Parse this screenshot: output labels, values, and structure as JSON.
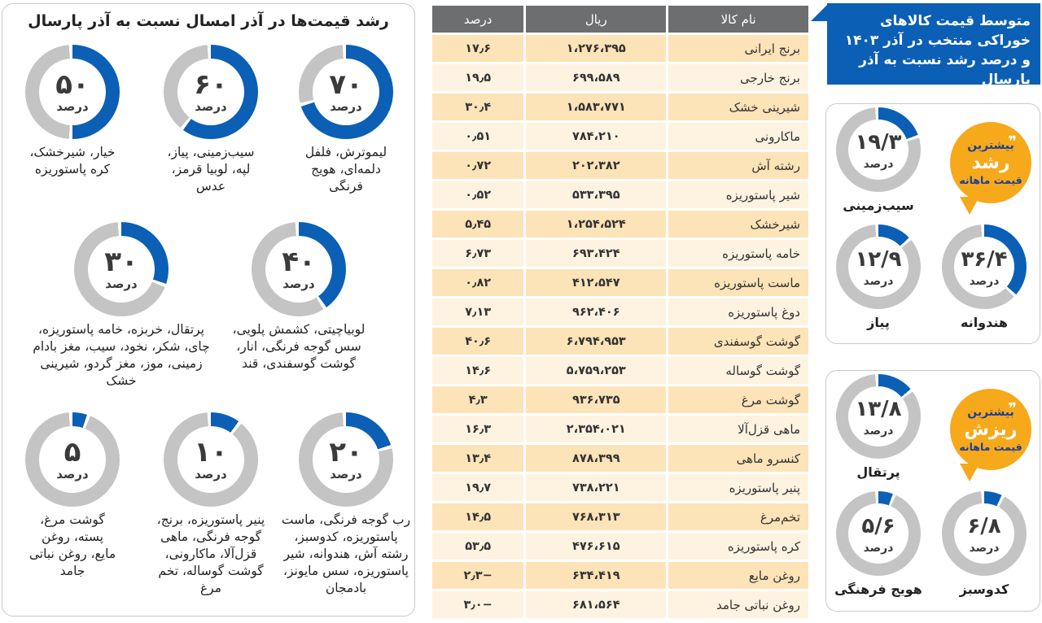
{
  "colors": {
    "accent_blue": "#0b5fb5",
    "ring_gray": "#c4c4c4",
    "header_gray": "#6d6e70",
    "row_odd": "#fde3b8",
    "row_even": "#fef3e1",
    "bubble_orange": "#f6a91b"
  },
  "headline": {
    "text": "متوسط قیمت کالاهای خوراکی منتخب در آذر ۱۴۰۳ و درصد رشد نسبت به آذر پارسال"
  },
  "table": {
    "headers": [
      "نام کالا",
      "ریال",
      "درصد"
    ],
    "rows": [
      {
        "name": "برنج ایرانی",
        "rial": "۱،۲۷۶،۳۹۵",
        "pct": "۱۷٫۶"
      },
      {
        "name": "برنج خارجی",
        "rial": "۶۹۹،۵۸۹",
        "pct": "۱۹٫۵"
      },
      {
        "name": "شیرینی خشک",
        "rial": "۱،۵۸۳،۷۷۱",
        "pct": "۳۰٫۴"
      },
      {
        "name": "ماکارونی",
        "rial": "۷۸۴،۲۱۰",
        "pct": "۰٫۵۱"
      },
      {
        "name": "رشته آش",
        "rial": "۲۰۲،۳۸۲",
        "pct": "۰٫۷۲"
      },
      {
        "name": "شیر پاستوریزه",
        "rial": "۵۳۳،۳۹۵",
        "pct": "۰٫۵۲"
      },
      {
        "name": "شیرخشک",
        "rial": "۱،۲۵۴،۵۲۴",
        "pct": "۵٫۴۵"
      },
      {
        "name": "خامه پاستوریزه",
        "rial": "۶۹۳،۴۲۴",
        "pct": "۶٫۷۳"
      },
      {
        "name": "ماست پاستوریزه",
        "rial": "۴۱۲،۵۴۷",
        "pct": "۰٫۸۲"
      },
      {
        "name": "دوغ پاستوریزه",
        "rial": "۹۶۲،۴۰۶",
        "pct": "۷٫۱۳"
      },
      {
        "name": "گوشت گوسفندی",
        "rial": "۶،۷۹۴،۹۵۳",
        "pct": "۴۰٫۶"
      },
      {
        "name": "گوشت گوساله",
        "rial": "۵،۷۵۹،۲۵۳",
        "pct": "۱۴٫۶"
      },
      {
        "name": "گوشت مرغ",
        "rial": "۹۳۶،۷۳۵",
        "pct": "۴٫۳"
      },
      {
        "name": "ماهی قزل‌آلا",
        "rial": "۲،۳۵۴،۰۲۱",
        "pct": "۱۶٫۳"
      },
      {
        "name": "کنسرو ماهی",
        "rial": "۸۷۸،۳۹۹",
        "pct": "۱۳٫۴"
      },
      {
        "name": "پنیر پاستوریزه",
        "rial": "۷۳۸،۲۲۱",
        "pct": "۱۹٫۷"
      },
      {
        "name": "تخم‌مرغ",
        "rial": "۷۶۸،۳۱۳",
        "pct": "۱۴٫۵"
      },
      {
        "name": "کره پاستوریزه",
        "rial": "۴۷۶،۶۱۵",
        "pct": "۵۳٫۵"
      },
      {
        "name": "روغن مایع",
        "rial": "۶۳۴،۴۱۹",
        "pct": "−۲٫۳"
      },
      {
        "name": "روغن نباتی جامد",
        "rial": "۶۸۱،۵۶۴",
        "pct": "−۳٫۰"
      }
    ]
  },
  "left_panel": {
    "title": "رشد قیمت‌ها در آذر امسال نسبت به آذر پارسال",
    "unit": "درصد",
    "groups": [
      {
        "value": 70,
        "num": "۷۰",
        "items": "لیموترش، فلفل دلمه‌ای، هویج فرنگی"
      },
      {
        "value": 60,
        "num": "۶۰",
        "items": "سیب‌زمینی، پیاز، لپه، لوبیا قرمز، عدس"
      },
      {
        "value": 50,
        "num": "۵۰",
        "items": "خیار، شیرخشک، کره پاستوریزه"
      },
      {
        "value": 40,
        "num": "۴۰",
        "items": "لوبیاچیتی، کشمش پلویی، سس گوجه فرنگی، انار، گوشت گوسفندی، قند"
      },
      {
        "value": 30,
        "num": "۳۰",
        "items": "پرتقال، خربزه، خامه پاستوریزه، چای، شکر، نخود، سیب، مغز بادام زمینی، موز، مغز گردو، شیرینی خشک"
      },
      {
        "value": 20,
        "num": "۲۰",
        "items": "رب گوجه فرنگی، ماست پاستوریزه، کدوسبز، رشته آش، هندوانه، شیر پاستوریزه، سس مایونز، بادمجان"
      },
      {
        "value": 10,
        "num": "۱۰",
        "items": "پنیر پاستوریزه، برنج، گوجه فرنگی، ماهی قزل‌آلا، ماکارونی، گوشت گوساله، تخم مرغ"
      },
      {
        "value": 5,
        "num": "۵",
        "items": "گوشت مرغ، پسته، روغن مایع، روغن نباتی جامد"
      }
    ]
  },
  "rise_panel": {
    "bubble": {
      "line1": "بیشترین",
      "line2": "رشد",
      "line3": "قیمت ماهانه"
    },
    "items": [
      {
        "value": 19.3,
        "num": "۱۹/۳",
        "name": "سیب‌زمینی"
      },
      {
        "value": 36.4,
        "num": "۳۶/۴",
        "name": "هندوانه"
      },
      {
        "value": 12.9,
        "num": "۱۲/۹",
        "name": "پیاز"
      }
    ]
  },
  "fall_panel": {
    "bubble": {
      "line1": "بیشترین",
      "line2": "ریزش",
      "line3": "قیمت ماهانه"
    },
    "items": [
      {
        "value": 13.8,
        "num": "۱۳/۸",
        "name": "پرتقال"
      },
      {
        "value": 6.8,
        "num": "۶/۸",
        "name": "کدوسبز"
      },
      {
        "value": 5.6,
        "num": "۵/۶",
        "name": "هویج فرهنگی"
      }
    ]
  },
  "chart_data": [
    {
      "type": "table",
      "title": "متوسط قیمت کالاهای خوراکی منتخب در آذر ۱۴۰۳ و درصد رشد نسبت به آذر پارسال",
      "columns": [
        "نام کالا",
        "ریال",
        "درصد"
      ],
      "rows": [
        [
          "برنج ایرانی",
          1276395,
          17.6
        ],
        [
          "برنج خارجی",
          699589,
          19.5
        ],
        [
          "شیرینی خشک",
          1583771,
          30.4
        ],
        [
          "ماکارونی",
          784210,
          0.51
        ],
        [
          "رشته آش",
          202382,
          0.72
        ],
        [
          "شیر پاستوریزه",
          533395,
          0.52
        ],
        [
          "شیرخشک",
          1254524,
          5.45
        ],
        [
          "خامه پاستوریزه",
          693424,
          6.73
        ],
        [
          "ماست پاستوریزه",
          412547,
          0.82
        ],
        [
          "دوغ پاستوریزه",
          962406,
          7.13
        ],
        [
          "گوشت گوسفندی",
          6794953,
          40.6
        ],
        [
          "گوشت گوساله",
          5759253,
          14.6
        ],
        [
          "گوشت مرغ",
          936735,
          4.3
        ],
        [
          "ماهی قزل‌آلا",
          2354021,
          16.3
        ],
        [
          "کنسرو ماهی",
          878399,
          13.4
        ],
        [
          "پنیر پاستوریزه",
          738221,
          19.7
        ],
        [
          "تخم‌مرغ",
          768313,
          14.5
        ],
        [
          "کره پاستوریزه",
          476615,
          53.5
        ],
        [
          "روغن مایع",
          634419,
          -2.3
        ],
        [
          "روغن نباتی جامد",
          681564,
          -3.0
        ]
      ]
    },
    {
      "type": "pie",
      "title": "رشد قیمت‌ها در آذر امسال نسبت به آذر پارسال",
      "categories": [
        "70",
        "60",
        "50",
        "40",
        "30",
        "20",
        "10",
        "5"
      ],
      "values": [
        70,
        60,
        50,
        40,
        30,
        20,
        10,
        5
      ]
    },
    {
      "type": "pie",
      "title": "بیشترین رشد قیمت ماهانه",
      "categories": [
        "سیب‌زمینی",
        "هندوانه",
        "پیاز"
      ],
      "values": [
        19.3,
        36.4,
        12.9
      ]
    },
    {
      "type": "pie",
      "title": "بیشترین ریزش قیمت ماهانه",
      "categories": [
        "پرتقال",
        "کدوسبز",
        "هویج فرهنگی"
      ],
      "values": [
        13.8,
        6.8,
        5.6
      ]
    }
  ]
}
